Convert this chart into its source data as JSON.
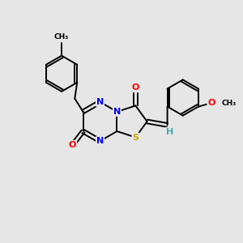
{
  "background_color": "#e6e6e6",
  "atom_colors": {
    "N": "#0000ee",
    "O": "#ff0000",
    "S": "#ccaa00",
    "C": "#000000",
    "H": "#44aaaa"
  },
  "bond_color": "#000000",
  "figsize": [
    3.0,
    3.0
  ],
  "dpi": 100
}
